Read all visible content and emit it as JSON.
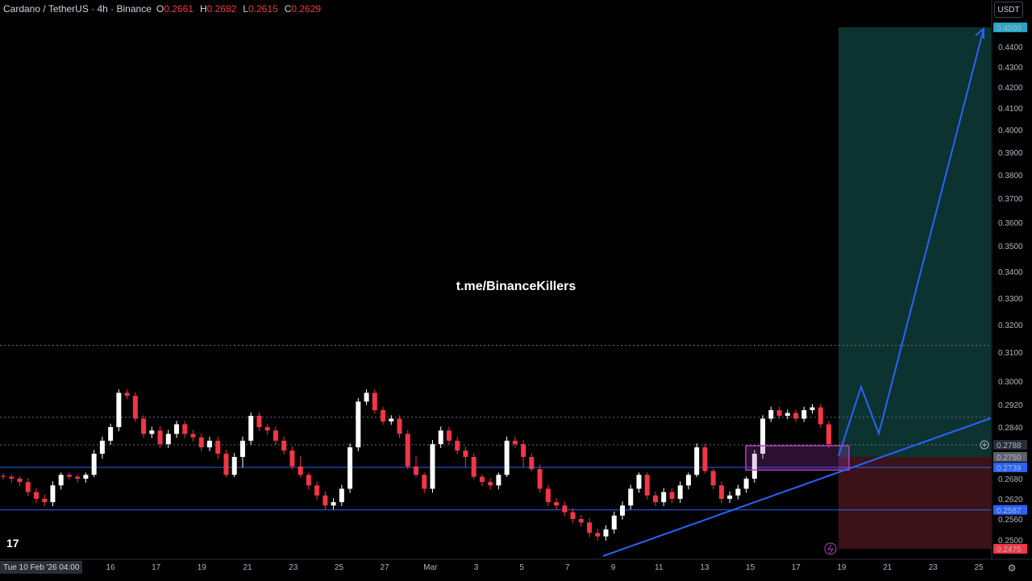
{
  "header": {
    "symbol": "Cardano / TetherUS · 4h · Binance",
    "open_label": "O",
    "open": "0.2661",
    "high_label": "H",
    "high": "0.2682",
    "low_label": "L",
    "low": "0.2615",
    "close_label": "C",
    "close": "0.2629",
    "currency": "USDT"
  },
  "watermark": "t.me/BinanceKillers",
  "time_badge": "Tue 10 Feb '26  04:00",
  "colors": {
    "up": "#ffffff",
    "down": "#f23645",
    "trendline": "#2962ff",
    "profit_zone": "#0d3331",
    "loss_zone": "#3b1218",
    "order_block": "#b040c0",
    "projection": "#2962ff"
  },
  "icons": {
    "tv_logo": "tradingview-logo-icon",
    "settings": "gear-icon",
    "add_alert": "plus-circle-icon",
    "flash": "lightning-icon"
  },
  "chart_data": {
    "type": "candlestick",
    "price_axis_ticks": [
      "0.4500",
      "0.4400",
      "0.4300",
      "0.4200",
      "0.4100",
      "0.4000",
      "0.3900",
      "0.3800",
      "0.3700",
      "0.3600",
      "0.3500",
      "0.3400",
      "0.3300",
      "0.3200",
      "0.3100",
      "0.3000",
      "0.2920",
      "0.2840",
      "0.2788",
      "0.2750",
      "0.2739",
      "0.2680",
      "0.2620",
      "0.2587",
      "0.2560",
      "0.2500",
      "0.2475"
    ],
    "highlighted_prices": [
      {
        "value": "0.4500",
        "color": "#22a7c9"
      },
      {
        "value": "0.2788",
        "color": "#2a2e39"
      },
      {
        "value": "0.2750",
        "color": "#5d606b"
      },
      {
        "value": "0.2739",
        "color": "#2962ff"
      },
      {
        "value": "0.2587",
        "color": "#2962ff"
      },
      {
        "value": "0.2475",
        "color": "#f23645"
      }
    ],
    "time_axis_ticks": [
      "16",
      "17",
      "19",
      "21",
      "23",
      "25",
      "27",
      "Mar",
      "3",
      "5",
      "7",
      "9",
      "11",
      "13",
      "15",
      "17",
      "19",
      "21",
      "23",
      "25"
    ],
    "horizontal_lines": [
      0.2739,
      0.2587
    ],
    "dotted_lines": [
      0.3125,
      0.2875,
      0.2788
    ],
    "trade_setup": {
      "entry": 0.275,
      "target": 0.45,
      "stop": 0.2475
    },
    "order_block": {
      "top": 0.2785,
      "bottom": 0.2725
    },
    "close_series": [
      0.269,
      0.268,
      0.267,
      0.264,
      0.262,
      0.261,
      0.266,
      0.27,
      0.269,
      0.268,
      0.27,
      0.276,
      0.28,
      0.284,
      0.296,
      0.295,
      0.287,
      0.282,
      0.283,
      0.279,
      0.282,
      0.285,
      0.282,
      0.281,
      0.278,
      0.28,
      0.276,
      0.27,
      0.275,
      0.28,
      0.288,
      0.284,
      0.283,
      0.28,
      0.277,
      0.274,
      0.27,
      0.266,
      0.263,
      0.26,
      0.261,
      0.265,
      0.278,
      0.293,
      0.296,
      0.29,
      0.286,
      0.287,
      0.282,
      0.274,
      0.27,
      0.265,
      0.279,
      0.283,
      0.28,
      0.277,
      0.275,
      0.269,
      0.267,
      0.266,
      0.27,
      0.28,
      0.279,
      0.275,
      0.273,
      0.265,
      0.261,
      0.26,
      0.258,
      0.256,
      0.255,
      0.252,
      0.251,
      0.253,
      0.257,
      0.26,
      0.265,
      0.27,
      0.263,
      0.261,
      0.264,
      0.262,
      0.266,
      0.27,
      0.278,
      0.272,
      0.266,
      0.262,
      0.263,
      0.265,
      0.268,
      0.276,
      0.287,
      0.29,
      0.288,
      0.289,
      0.287,
      0.29,
      0.291,
      0.285,
      0.279
    ]
  }
}
